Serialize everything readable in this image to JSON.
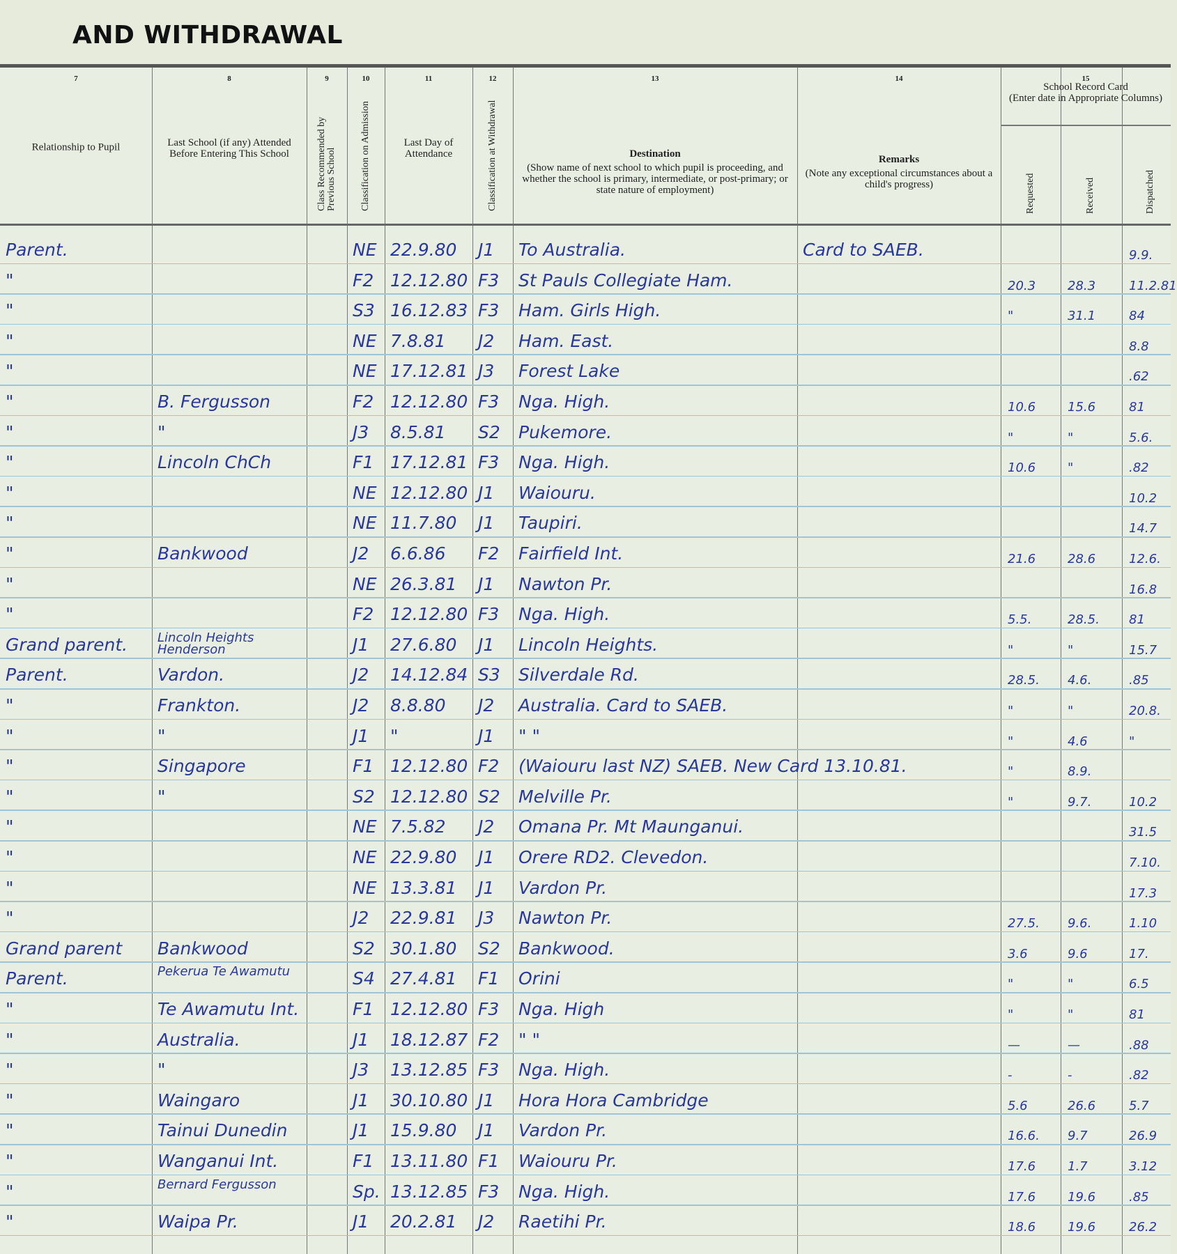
{
  "page_title": "AND WITHDRAWAL",
  "columns": [
    {
      "num": "7",
      "label": "Relationship to Pupil"
    },
    {
      "num": "8",
      "label": "Last School (if any) Attended Before Entering This School"
    },
    {
      "num": "9",
      "label": "Class Recommended by Previous School"
    },
    {
      "num": "10",
      "label": "Classification on Admission"
    },
    {
      "num": "11",
      "label": "Last Day of Attendance"
    },
    {
      "num": "12",
      "label": "Classification at Withdrawal"
    },
    {
      "num": "13",
      "label": "Destination",
      "note": "(Show name of next school to which pupil is proceeding, and whether the school is primary, intermediate, or post-primary; or state nature of employment)"
    },
    {
      "num": "14",
      "label": "Remarks",
      "note": "(Note any exceptional circumstances about a child's progress)"
    },
    {
      "num": "15",
      "label": "School Record Card",
      "note": "(Enter date in Appropriate Columns)",
      "sub": [
        "Requested",
        "Received",
        "Dispatched"
      ]
    }
  ],
  "ink_color": "#2a3897",
  "rows": [
    [
      "Parent.",
      "",
      "",
      "NE",
      "22.9.80",
      "J1",
      "To Australia.",
      "Card to SAEB.",
      "",
      "",
      "9.9."
    ],
    [
      "\"",
      "",
      "",
      "F2",
      "12.12.80",
      "F3",
      "St Pauls Collegiate Ham.",
      "",
      "20.3",
      "28.3",
      "11.2.81"
    ],
    [
      "\"",
      "",
      "",
      "S3",
      "16.12.83",
      "F3",
      "Ham. Girls High.",
      "",
      "\"",
      "31.1",
      "84"
    ],
    [
      "\"",
      "",
      "",
      "NE",
      "7.8.81",
      "J2",
      "Ham. East.",
      "",
      "",
      "",
      "8.8"
    ],
    [
      "\"",
      "",
      "",
      "NE",
      "17.12.81",
      "J3",
      "Forest Lake",
      "",
      "",
      "",
      ".62"
    ],
    [
      "\"",
      "B. Fergusson",
      "",
      "F2",
      "12.12.80",
      "F3",
      "Nga. High.",
      "",
      "10.6",
      "15.6",
      "81"
    ],
    [
      "\"",
      "\"",
      "",
      "J3",
      "8.5.81",
      "S2",
      "Pukemore.",
      "",
      "\"",
      "\"",
      "5.6."
    ],
    [
      "\"",
      "Lincoln ChCh",
      "",
      "F1",
      "17.12.81",
      "F3",
      "Nga. High.",
      "",
      "10.6",
      "\"",
      ".82"
    ],
    [
      "\"",
      "",
      "",
      "NE",
      "12.12.80",
      "J1",
      "Waiouru.",
      "",
      "",
      "",
      "10.2"
    ],
    [
      "\"",
      "",
      "",
      "NE",
      "11.7.80",
      "J1",
      "Taupiri.",
      "",
      "",
      "",
      "14.7"
    ],
    [
      "\"",
      "Bankwood",
      "",
      "J2",
      "6.6.86",
      "F2",
      "Fairfield Int.",
      "",
      "21.6",
      "28.6",
      "12.6."
    ],
    [
      "\"",
      "",
      "",
      "NE",
      "26.3.81",
      "J1",
      "Nawton Pr.",
      "",
      "",
      "",
      "16.8"
    ],
    [
      "\"",
      "",
      "",
      "F2",
      "12.12.80",
      "F3",
      "Nga. High.",
      "",
      "5.5.",
      "28.5.",
      "81"
    ],
    [
      "Grand parent.",
      "Lincoln Heights Henderson",
      "",
      "J1",
      "27.6.80",
      "J1",
      "Lincoln Heights.",
      "",
      "\"",
      "\"",
      "15.7"
    ],
    [
      "Parent.",
      "Vardon.",
      "",
      "J2",
      "14.12.84",
      "S3",
      "Silverdale Rd.",
      "",
      "28.5.",
      "4.6.",
      ".85"
    ],
    [
      "\"",
      "Frankton.",
      "",
      "J2",
      "8.8.80",
      "J2",
      "Australia.  Card to SAEB.",
      "",
      "\"",
      "\"",
      "20.8."
    ],
    [
      "\"",
      "\"",
      "",
      "J1",
      "\"",
      "J1",
      "\"          \"",
      "",
      "\"",
      "4.6",
      "\""
    ],
    [
      "\"",
      "Singapore",
      "",
      "F1",
      "12.12.80",
      "F2",
      "(Waiouru last NZ) SAEB. New Card 13.10.81.",
      "",
      "\"",
      "8.9.",
      ""
    ],
    [
      "\"",
      "\"",
      "",
      "S2",
      "12.12.80",
      "S2",
      "Melville Pr.",
      "",
      "\"",
      "9.7.",
      "10.2"
    ],
    [
      "\"",
      "",
      "",
      "NE",
      "7.5.82",
      "J2",
      "Omana Pr.  Mt Maunganui.",
      "",
      "",
      "",
      "31.5"
    ],
    [
      "\"",
      "",
      "",
      "NE",
      "22.9.80",
      "J1",
      "Orere RD2. Clevedon.",
      "",
      "",
      "",
      "7.10."
    ],
    [
      "\"",
      "",
      "",
      "NE",
      "13.3.81",
      "J1",
      "Vardon Pr.",
      "",
      "",
      "",
      "17.3"
    ],
    [
      "\"",
      "",
      "",
      "J2",
      "22.9.81",
      "J3",
      "Nawton Pr.",
      "",
      "27.5.",
      "9.6.",
      "1.10"
    ],
    [
      "Grand parent",
      "Bankwood",
      "",
      "S2",
      "30.1.80",
      "S2",
      "Bankwood.",
      "",
      "3.6",
      "9.6",
      "17."
    ],
    [
      "Parent.",
      "Pekerua Te Awamutu",
      "",
      "S4",
      "27.4.81",
      "F1",
      "Orini",
      "",
      "\"",
      "\"",
      "6.5"
    ],
    [
      "\"",
      "Te Awamutu Int.",
      "",
      "F1",
      "12.12.80",
      "F3",
      "Nga. High",
      "",
      "\"",
      "\"",
      "81"
    ],
    [
      "\"",
      "Australia.",
      "",
      "J1",
      "18.12.87",
      "F2",
      "\"        \"",
      "",
      "—",
      "—",
      ".88"
    ],
    [
      "\"",
      "\"",
      "",
      "J3",
      "13.12.85",
      "F3",
      "Nga. High.",
      "",
      "-",
      "-",
      ".82"
    ],
    [
      "\"",
      "Waingaro",
      "",
      "J1",
      "30.10.80",
      "J1",
      "Hora Hora Cambridge",
      "",
      "5.6",
      "26.6",
      "5.7"
    ],
    [
      "\"",
      "Tainui Dunedin",
      "",
      "J1",
      "15.9.80",
      "J1",
      "Vardon Pr.",
      "",
      "16.6.",
      "9.7",
      "26.9"
    ],
    [
      "\"",
      "Wanganui Int.",
      "",
      "F1",
      "13.11.80",
      "F1",
      "Waiouru Pr.",
      "",
      "17.6",
      "1.7",
      "3.12"
    ],
    [
      "\"",
      "Bernard Fergusson",
      "",
      "Sp.",
      "13.12.85",
      "F3",
      "Nga. High.",
      "",
      "17.6",
      "19.6",
      ".85"
    ],
    [
      "\"",
      "Waipa Pr.",
      "",
      "J1",
      "20.2.81",
      "J2",
      "Raetihi Pr.",
      "",
      "18.6",
      "19.6",
      "26.2"
    ]
  ]
}
